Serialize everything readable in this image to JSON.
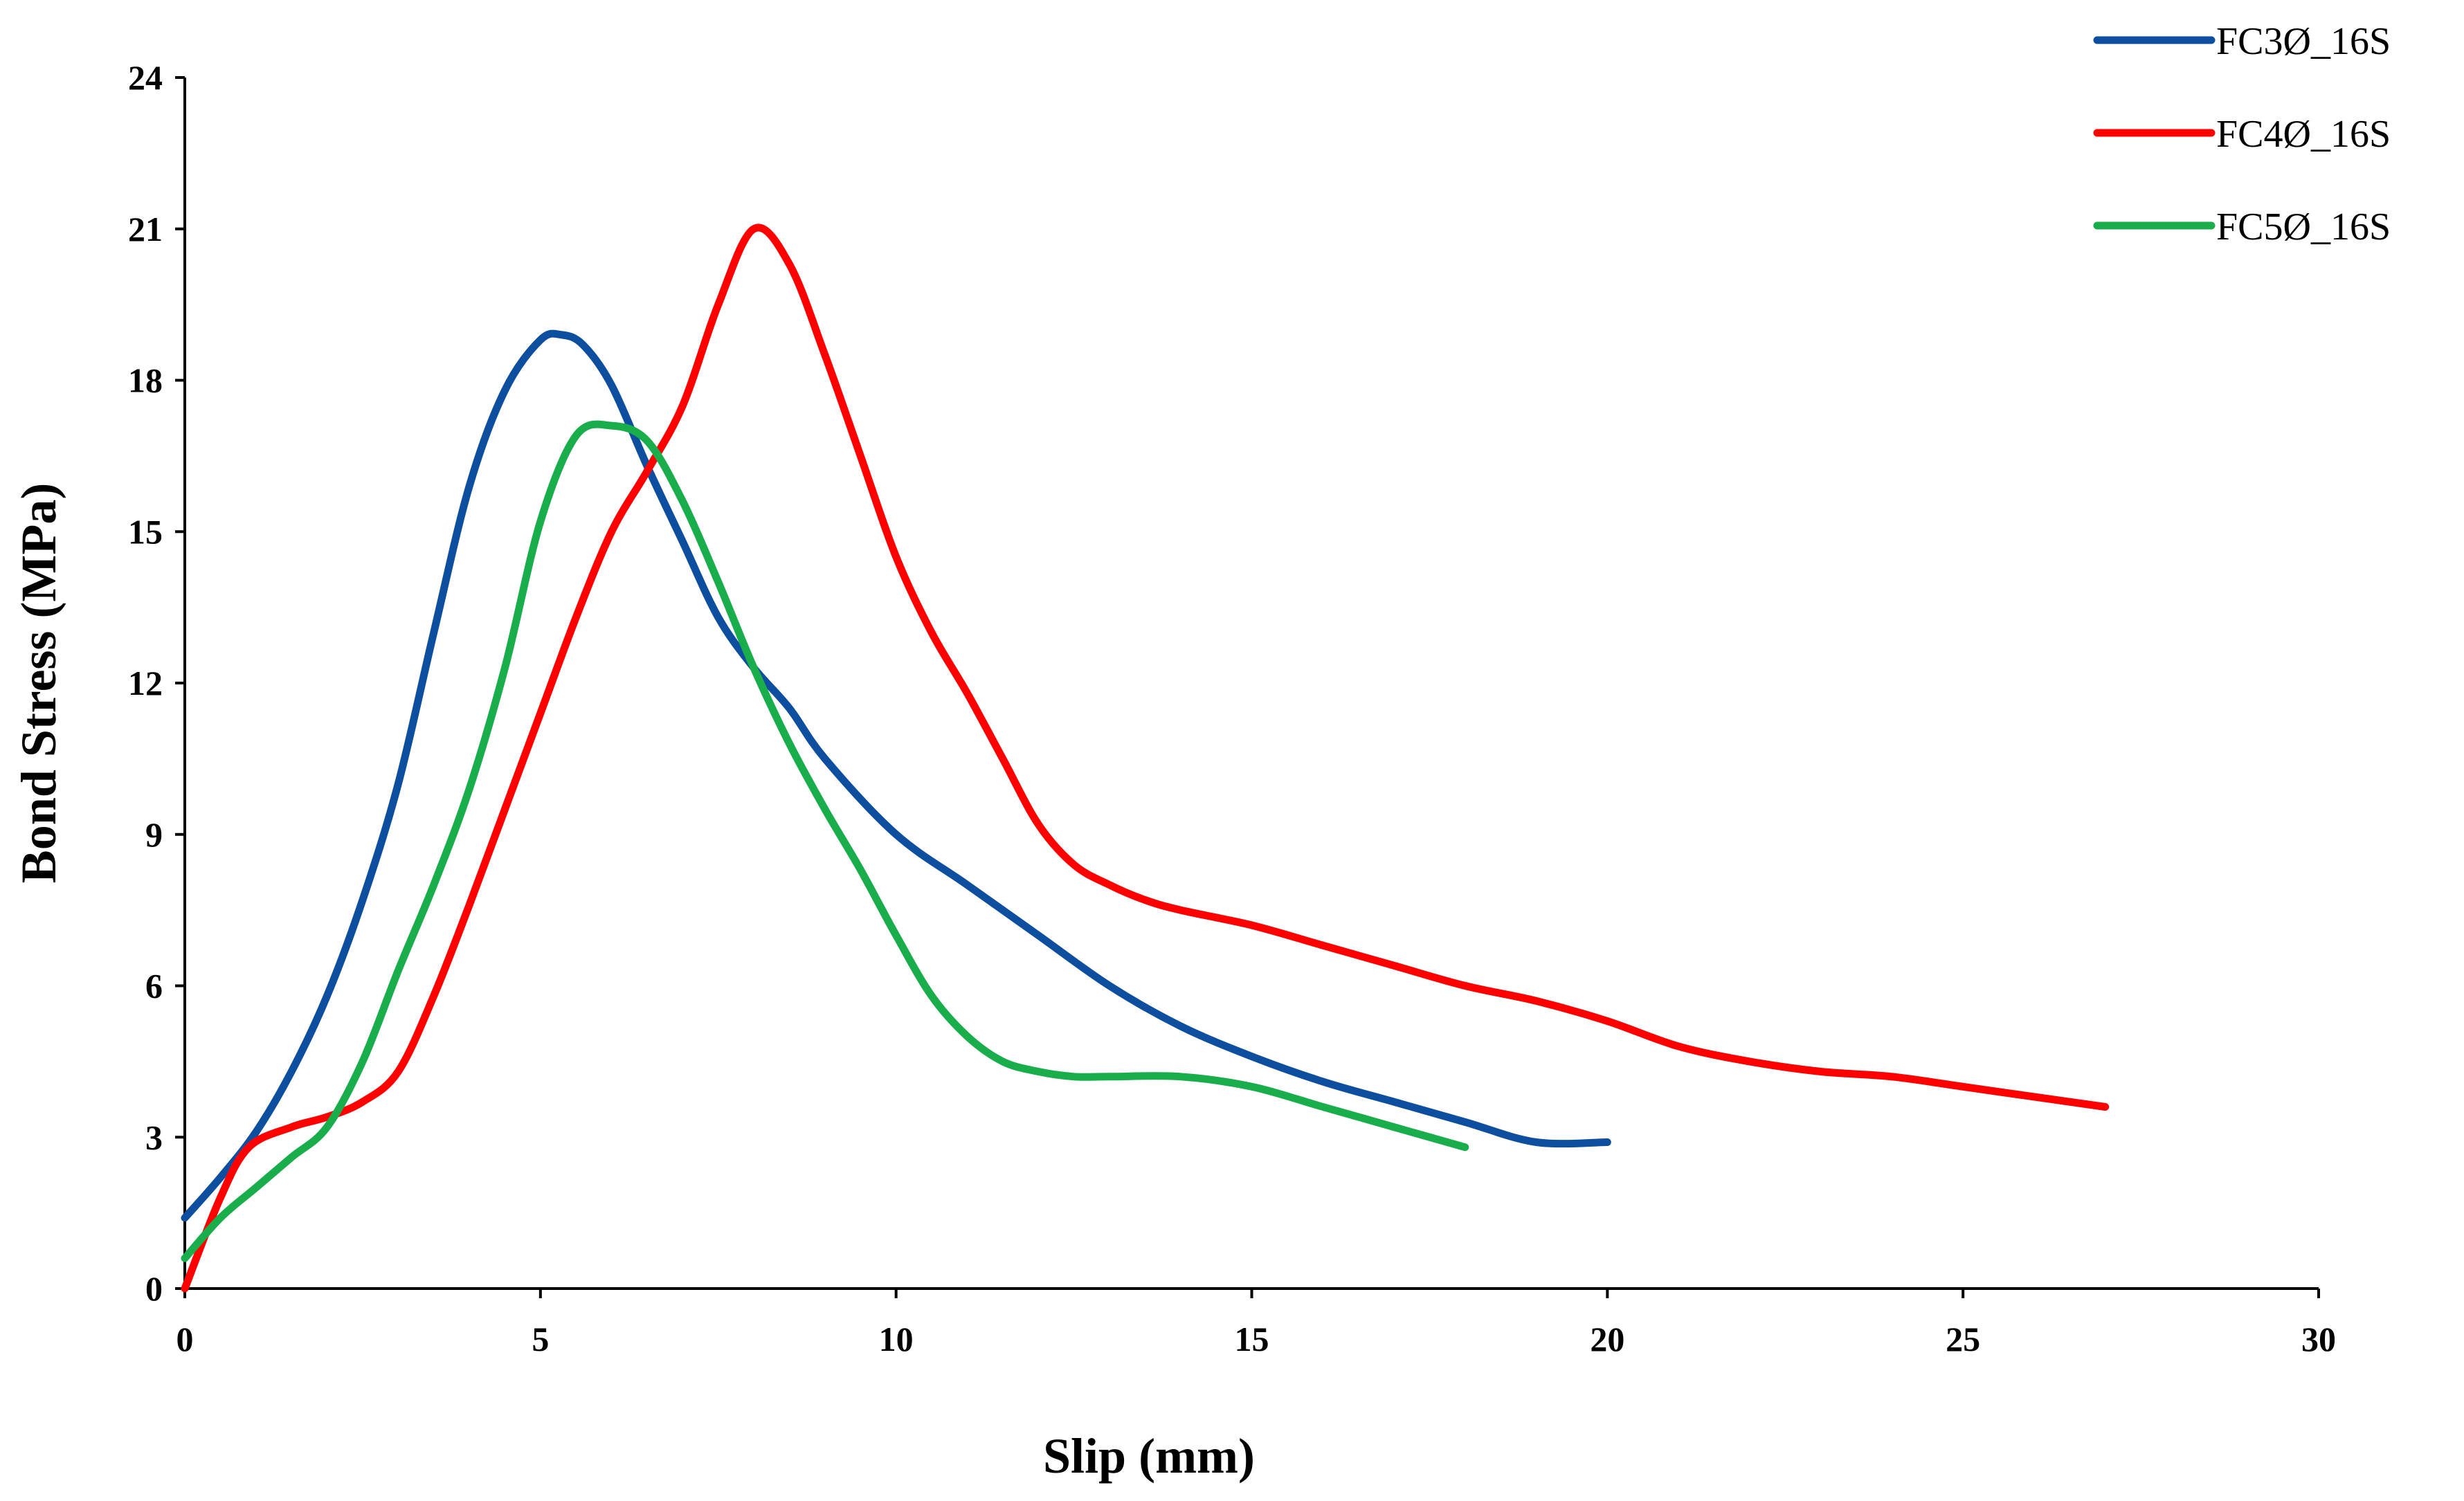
{
  "chart_data": {
    "type": "line",
    "title": "",
    "xlabel": "Slip (mm)",
    "ylabel": "Bond Stress (MPa)",
    "xlim": [
      0,
      30
    ],
    "ylim": [
      0,
      24
    ],
    "xticks": [
      0,
      5,
      10,
      15,
      20,
      25,
      30
    ],
    "yticks": [
      0,
      3,
      6,
      9,
      12,
      15,
      18,
      21,
      24
    ],
    "grid": false,
    "legend_position": "top-right",
    "series": [
      {
        "name": "FC3Ø_16S",
        "color": "#0d4f9e",
        "x": [
          0,
          0.5,
          1,
          1.5,
          2,
          2.5,
          3,
          3.5,
          4,
          4.5,
          5,
          5.3,
          5.6,
          6,
          6.5,
          7,
          7.5,
          8,
          8.5,
          9,
          10,
          11,
          12,
          13,
          14,
          15,
          16,
          17,
          18,
          19,
          20
        ],
        "y": [
          1.4,
          2.2,
          3.1,
          4.3,
          5.8,
          7.7,
          10.0,
          13.0,
          15.9,
          17.8,
          18.8,
          18.9,
          18.7,
          17.9,
          16.3,
          14.8,
          13.3,
          12.3,
          11.5,
          10.5,
          9.0,
          8.0,
          7.0,
          6.0,
          5.2,
          4.6,
          4.1,
          3.7,
          3.3,
          2.9,
          2.9
        ]
      },
      {
        "name": "FC4Ø_16S",
        "color": "#ff0000",
        "x": [
          0,
          0.5,
          0.9,
          1.5,
          2,
          2.5,
          3,
          3.5,
          4,
          4.5,
          5,
          5.5,
          6,
          6.5,
          7,
          7.5,
          8,
          8.5,
          9,
          9.5,
          10,
          10.5,
          11,
          11.5,
          12,
          12.5,
          13,
          13.5,
          14,
          15,
          16,
          17,
          18,
          19,
          20,
          21,
          22,
          23,
          24,
          25,
          26,
          27
        ],
        "y": [
          0,
          1.8,
          2.8,
          3.2,
          3.4,
          3.7,
          4.3,
          5.8,
          7.6,
          9.5,
          11.4,
          13.3,
          15.0,
          16.2,
          17.5,
          19.5,
          21.0,
          20.3,
          18.5,
          16.5,
          14.5,
          13.0,
          11.8,
          10.5,
          9.2,
          8.4,
          8.0,
          7.7,
          7.5,
          7.2,
          6.8,
          6.4,
          6.0,
          5.7,
          5.3,
          4.8,
          4.5,
          4.3,
          4.2,
          4.0,
          3.8,
          3.6
        ]
      },
      {
        "name": "FC5Ø_16S",
        "color": "#1aad4b",
        "x": [
          0,
          0.5,
          1,
          1.5,
          2,
          2.5,
          3,
          3.5,
          4,
          4.5,
          5,
          5.5,
          6,
          6.5,
          7,
          7.5,
          8,
          8.5,
          9,
          9.5,
          10,
          10.5,
          11,
          11.5,
          12,
          12.5,
          13,
          14,
          15,
          16,
          17,
          18
        ],
        "y": [
          0.6,
          1.4,
          2.0,
          2.6,
          3.2,
          4.5,
          6.3,
          8.0,
          9.9,
          12.3,
          15.2,
          16.9,
          17.1,
          16.8,
          15.6,
          14.0,
          12.3,
          10.8,
          9.5,
          8.3,
          7.0,
          5.8,
          5.0,
          4.5,
          4.3,
          4.2,
          4.2,
          4.2,
          4.0,
          3.6,
          3.2,
          2.8
        ]
      }
    ]
  }
}
